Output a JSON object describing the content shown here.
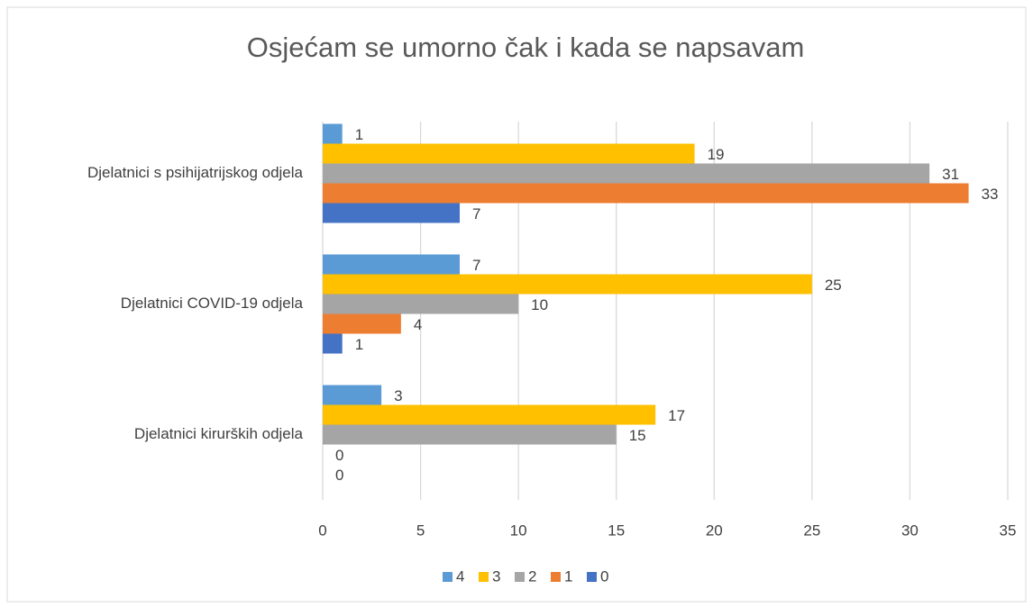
{
  "chart_data": {
    "type": "bar",
    "orientation": "horizontal",
    "title": "Osjećam se umorno čak i kada se napsavam",
    "categories": [
      "Djelatnici s psihijatrijskog odjela",
      "Djelatnici COVID-19 odjela",
      "Djelatnici kirurških odjela"
    ],
    "series": [
      {
        "name": "4",
        "color": "#5b9bd5",
        "values": [
          1,
          7,
          3
        ]
      },
      {
        "name": "3",
        "color": "#ffc000",
        "values": [
          19,
          25,
          17
        ]
      },
      {
        "name": "2",
        "color": "#a5a5a5",
        "values": [
          31,
          10,
          15
        ]
      },
      {
        "name": "1",
        "color": "#ed7d31",
        "values": [
          33,
          4,
          0
        ]
      },
      {
        "name": "0",
        "color": "#4472c4",
        "values": [
          7,
          1,
          0
        ]
      }
    ],
    "xlim": [
      0,
      35
    ],
    "xticks": [
      0,
      5,
      10,
      15,
      20,
      25,
      30,
      35
    ],
    "grid": true,
    "legend": "bottom"
  }
}
